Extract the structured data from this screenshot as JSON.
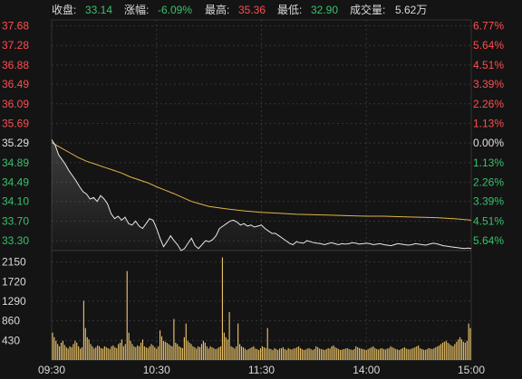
{
  "header": {
    "close_label": "收盘:",
    "close_value": "33.14",
    "change_label": "涨幅:",
    "change_value": "-6.09%",
    "high_label": "最高:",
    "high_value": "35.36",
    "low_label": "最低:",
    "low_value": "32.90",
    "volume_label": "成交量:",
    "volume_value": "5.62万"
  },
  "colors": {
    "up": "#ff4d4f",
    "down": "#37c26a",
    "neutral": "#e0e0e0",
    "price_line": "#e8e8e8",
    "avg_line": "#e0b44a",
    "volume_bar": "#e6c069",
    "grid": "#333333"
  },
  "chart_data": {
    "type": "line",
    "price_axis": {
      "ylim": [
        33.1,
        37.8
      ],
      "tick_values": [
        37.68,
        37.28,
        36.88,
        36.49,
        36.09,
        35.69,
        35.29,
        34.89,
        34.49,
        34.1,
        33.7,
        33.3
      ],
      "tick_labels": [
        "37.68",
        "37.28",
        "36.88",
        "36.49",
        "36.09",
        "35.69",
        "35.29",
        "34.89",
        "34.49",
        "34.10",
        "33.70",
        "33.30"
      ],
      "pct_labels": [
        "6.77%",
        "5.64%",
        "4.51%",
        "3.39%",
        "2.26%",
        "1.13%",
        "0.00%",
        "1.13%",
        "2.26%",
        "3.39%",
        "4.51%",
        "5.64%"
      ],
      "reference_price": 35.29
    },
    "volume_axis": {
      "ylim": [
        0,
        2400
      ],
      "tick_values": [
        2150,
        1720,
        1290,
        860,
        430
      ],
      "tick_labels": [
        "2150",
        "1720",
        "1290",
        "860",
        "430"
      ]
    },
    "x_ticks": {
      "positions": [
        0,
        60,
        120,
        180,
        240
      ],
      "labels": [
        "09:30",
        "10:30",
        "11:30",
        "14:00",
        "15:00"
      ]
    },
    "total_minutes": 240,
    "price_series": {
      "x": [
        0,
        2,
        4,
        6,
        8,
        10,
        12,
        14,
        16,
        18,
        20,
        22,
        24,
        26,
        28,
        30,
        32,
        34,
        36,
        38,
        40,
        42,
        44,
        46,
        48,
        50,
        52,
        54,
        56,
        58,
        60,
        62,
        64,
        66,
        68,
        70,
        72,
        74,
        76,
        78,
        80,
        82,
        84,
        86,
        88,
        90,
        92,
        94,
        96,
        98,
        100,
        102,
        104,
        106,
        108,
        110,
        112,
        114,
        116,
        118,
        120,
        122,
        124,
        126,
        128,
        130,
        132,
        134,
        136,
        138,
        140,
        142,
        144,
        146,
        148,
        150,
        152,
        154,
        156,
        158,
        160,
        162,
        164,
        166,
        168,
        170,
        172,
        174,
        176,
        178,
        180,
        182,
        184,
        186,
        188,
        190,
        192,
        194,
        196,
        198,
        200,
        202,
        204,
        206,
        208,
        210,
        212,
        214,
        216,
        218,
        220,
        222,
        224,
        226,
        228,
        230,
        232,
        234,
        236,
        238,
        240
      ],
      "y": [
        35.36,
        35.25,
        35.05,
        34.95,
        34.85,
        34.72,
        34.62,
        34.52,
        34.4,
        34.3,
        34.25,
        34.15,
        34.18,
        34.1,
        34.22,
        34.15,
        34.05,
        33.85,
        33.75,
        33.8,
        33.72,
        33.78,
        33.65,
        33.62,
        33.7,
        33.6,
        33.55,
        33.65,
        33.75,
        33.72,
        33.55,
        33.35,
        33.18,
        33.28,
        33.4,
        33.3,
        33.22,
        33.1,
        33.14,
        33.25,
        33.35,
        33.2,
        33.14,
        33.22,
        33.3,
        33.28,
        33.32,
        33.4,
        33.55,
        33.6,
        33.65,
        33.7,
        33.72,
        33.68,
        33.62,
        33.65,
        33.6,
        33.62,
        33.58,
        33.6,
        33.62,
        33.55,
        33.5,
        33.45,
        33.45,
        33.4,
        33.35,
        33.3,
        33.25,
        33.22,
        33.28,
        33.26,
        33.25,
        33.3,
        33.28,
        33.26,
        33.25,
        33.24,
        33.22,
        33.24,
        33.26,
        33.24,
        33.22,
        33.24,
        33.23,
        33.24,
        33.26,
        33.25,
        33.23,
        33.24,
        33.25,
        33.24,
        33.22,
        33.23,
        33.24,
        33.22,
        33.21,
        33.2,
        33.22,
        33.24,
        33.23,
        33.22,
        33.21,
        33.22,
        33.24,
        33.23,
        33.22,
        33.21,
        33.23,
        33.25,
        33.24,
        33.22,
        33.2,
        33.19,
        33.18,
        33.17,
        33.16,
        33.15,
        33.14,
        33.15,
        33.14
      ]
    },
    "avg_series": {
      "x": [
        0,
        5,
        10,
        15,
        20,
        25,
        30,
        35,
        40,
        45,
        50,
        55,
        60,
        65,
        70,
        75,
        80,
        85,
        90,
        100,
        110,
        120,
        130,
        140,
        150,
        160,
        170,
        180,
        190,
        200,
        210,
        220,
        230,
        240
      ],
      "y": [
        35.3,
        35.2,
        35.1,
        35.0,
        34.92,
        34.86,
        34.8,
        34.74,
        34.68,
        34.6,
        34.54,
        34.48,
        34.4,
        34.33,
        34.26,
        34.18,
        34.1,
        34.05,
        34.0,
        33.95,
        33.91,
        33.88,
        33.86,
        33.84,
        33.83,
        33.82,
        33.81,
        33.8,
        33.8,
        33.79,
        33.78,
        33.77,
        33.75,
        33.72
      ]
    },
    "volume_series": {
      "values": [
        600,
        500,
        420,
        350,
        300,
        380,
        420,
        330,
        280,
        250,
        300,
        280,
        350,
        420,
        380,
        300,
        250,
        280,
        1300,
        700,
        500,
        450,
        350,
        300,
        250,
        280,
        320,
        300,
        260,
        250,
        300,
        280,
        260,
        240,
        300,
        320,
        280,
        260,
        350,
        380,
        450,
        300,
        350,
        1950,
        600,
        420,
        350,
        300,
        280,
        320,
        300,
        380,
        450,
        300,
        280,
        260,
        300,
        350,
        320,
        280,
        250,
        300,
        650,
        520,
        420,
        400,
        380,
        350,
        320,
        300,
        900,
        380,
        350,
        300,
        280,
        260,
        500,
        800,
        420,
        380,
        350,
        300,
        280,
        250,
        300,
        280,
        350,
        420,
        380,
        300,
        250,
        300,
        280,
        260,
        240,
        250,
        280,
        300,
        2250,
        600,
        500,
        450,
        1050,
        300,
        280,
        250,
        300,
        800,
        350,
        300,
        280,
        250,
        220,
        240,
        260,
        280,
        300,
        250,
        240,
        220,
        260,
        300,
        280,
        260,
        700,
        250,
        240,
        220,
        260,
        240,
        220,
        250,
        260,
        280,
        240,
        220,
        260,
        240,
        230,
        250,
        260,
        280,
        300,
        260,
        240,
        220,
        230,
        250,
        260,
        240,
        220,
        240,
        300,
        280,
        250,
        240,
        230,
        220,
        240,
        260,
        250,
        300,
        320,
        280,
        260,
        240,
        220,
        230,
        240,
        250,
        260,
        240,
        230,
        220,
        240,
        300,
        280,
        260,
        250,
        240,
        230,
        220,
        240,
        260,
        280,
        300,
        260,
        240,
        230,
        250,
        260,
        240,
        230,
        250,
        260,
        300,
        280,
        260,
        240,
        230,
        220,
        240,
        260,
        280,
        250,
        240,
        230,
        250,
        260,
        280,
        300,
        320,
        260,
        240,
        230,
        220,
        240,
        260,
        250,
        240,
        260,
        280,
        300,
        320,
        350,
        380,
        400,
        420,
        380,
        350,
        320,
        300,
        350,
        400,
        450,
        500,
        450,
        400,
        380,
        420,
        800,
        700
      ]
    }
  }
}
